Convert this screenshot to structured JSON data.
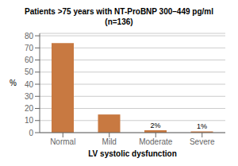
{
  "chart_data": {
    "type": "bar",
    "title": "Patients >75 years with NT-ProBNP 300–449 pg/ml",
    "subtitle": "(n=136)",
    "x_label": "LV systolic dysfunction",
    "y_label": "%",
    "categories": [
      "Normal",
      "Mild",
      "Moderate",
      "Severe"
    ],
    "values": [
      74,
      15,
      2,
      1
    ],
    "value_labels": [
      null,
      null,
      "2%",
      "1%"
    ],
    "color": "#c87941",
    "ylim": [
      0,
      82
    ],
    "yticks": [
      0,
      10,
      20,
      30,
      40,
      50,
      60,
      70,
      80
    ],
    "grid": true
  }
}
